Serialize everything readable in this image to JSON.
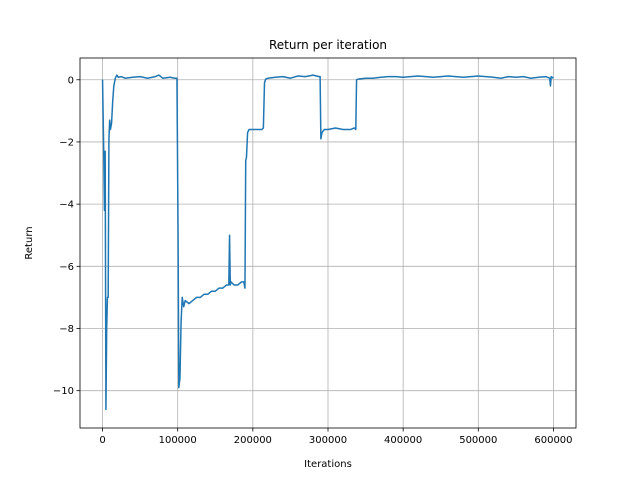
{
  "chart_data": {
    "type": "line",
    "title": "Return per iteration",
    "xlabel": "Iterations",
    "ylabel": "Return",
    "xlim": [
      -30000,
      630000
    ],
    "ylim": [
      -11.2,
      0.7
    ],
    "xticks": [
      0,
      100000,
      200000,
      300000,
      400000,
      500000,
      600000
    ],
    "xtick_labels": [
      "0",
      "100000",
      "200000",
      "300000",
      "400000",
      "500000",
      "600000"
    ],
    "yticks": [
      -10,
      -8,
      -6,
      -4,
      -2,
      0
    ],
    "ytick_labels": [
      "−10",
      "−8",
      "−6",
      "−4",
      "−2",
      "0"
    ],
    "grid": true,
    "line_color": "#1f77b4",
    "series": [
      {
        "x": [
          0,
          1500,
          2500,
          3500,
          4500,
          5500,
          6500,
          7500,
          8500,
          9500,
          10500,
          12000,
          13500,
          15000,
          17000,
          19000,
          21000,
          25000,
          30000,
          40000,
          50000,
          60000,
          70000,
          75000,
          80000,
          90000,
          96000,
          99000,
          100500,
          101500,
          103000,
          104500,
          106000,
          108000,
          110000,
          115000,
          120000,
          125000,
          130000,
          135000,
          140000,
          145000,
          150000,
          155000,
          160000,
          165000,
          168000,
          169000,
          170000,
          171000,
          175000,
          180000,
          185000,
          188000,
          189500,
          190500,
          191500,
          193000,
          195000,
          198000,
          205000,
          212000,
          214000,
          215500,
          217000,
          220000,
          230000,
          240000,
          250000,
          260000,
          270000,
          280000,
          288000,
          289500,
          290500,
          292000,
          295000,
          300000,
          310000,
          320000,
          330000,
          335000,
          337000,
          338000,
          340000,
          350000,
          360000,
          370000,
          380000,
          390000,
          400000,
          410000,
          420000,
          430000,
          440000,
          450000,
          460000,
          470000,
          480000,
          490000,
          500000,
          510000,
          520000,
          530000,
          540000,
          550000,
          560000,
          570000,
          580000,
          590000,
          595000,
          596000,
          597000,
          600000
        ],
        "values": [
          0.0,
          -2.2,
          -4.2,
          -2.3,
          -10.6,
          -8.0,
          -7.0,
          -7.0,
          -1.9,
          -1.3,
          -1.6,
          -1.4,
          -0.7,
          -0.2,
          0.05,
          0.15,
          0.08,
          0.1,
          0.05,
          0.08,
          0.1,
          0.05,
          0.1,
          0.15,
          0.05,
          0.08,
          0.05,
          0.05,
          -5.0,
          -9.9,
          -9.6,
          -7.8,
          -7.0,
          -7.3,
          -7.1,
          -7.2,
          -7.1,
          -7.0,
          -7.0,
          -6.9,
          -6.9,
          -6.8,
          -6.8,
          -6.7,
          -6.7,
          -6.6,
          -6.6,
          -5.0,
          -6.6,
          -6.5,
          -6.6,
          -6.6,
          -6.5,
          -6.5,
          -6.7,
          -2.6,
          -2.5,
          -1.7,
          -1.6,
          -1.6,
          -1.6,
          -1.6,
          -1.55,
          -0.1,
          0.02,
          0.05,
          0.08,
          0.1,
          0.05,
          0.12,
          0.1,
          0.15,
          0.1,
          0.1,
          -1.9,
          -1.7,
          -1.6,
          -1.6,
          -1.55,
          -1.6,
          -1.6,
          -1.55,
          -1.6,
          0.0,
          0.02,
          0.05,
          0.05,
          0.08,
          0.1,
          0.1,
          0.08,
          0.1,
          0.12,
          0.1,
          0.08,
          0.1,
          0.12,
          0.1,
          0.08,
          0.1,
          0.12,
          0.1,
          0.08,
          0.05,
          0.1,
          0.08,
          0.1,
          0.05,
          0.08,
          0.1,
          0.05,
          -0.2,
          0.1,
          0.05
        ]
      }
    ]
  }
}
